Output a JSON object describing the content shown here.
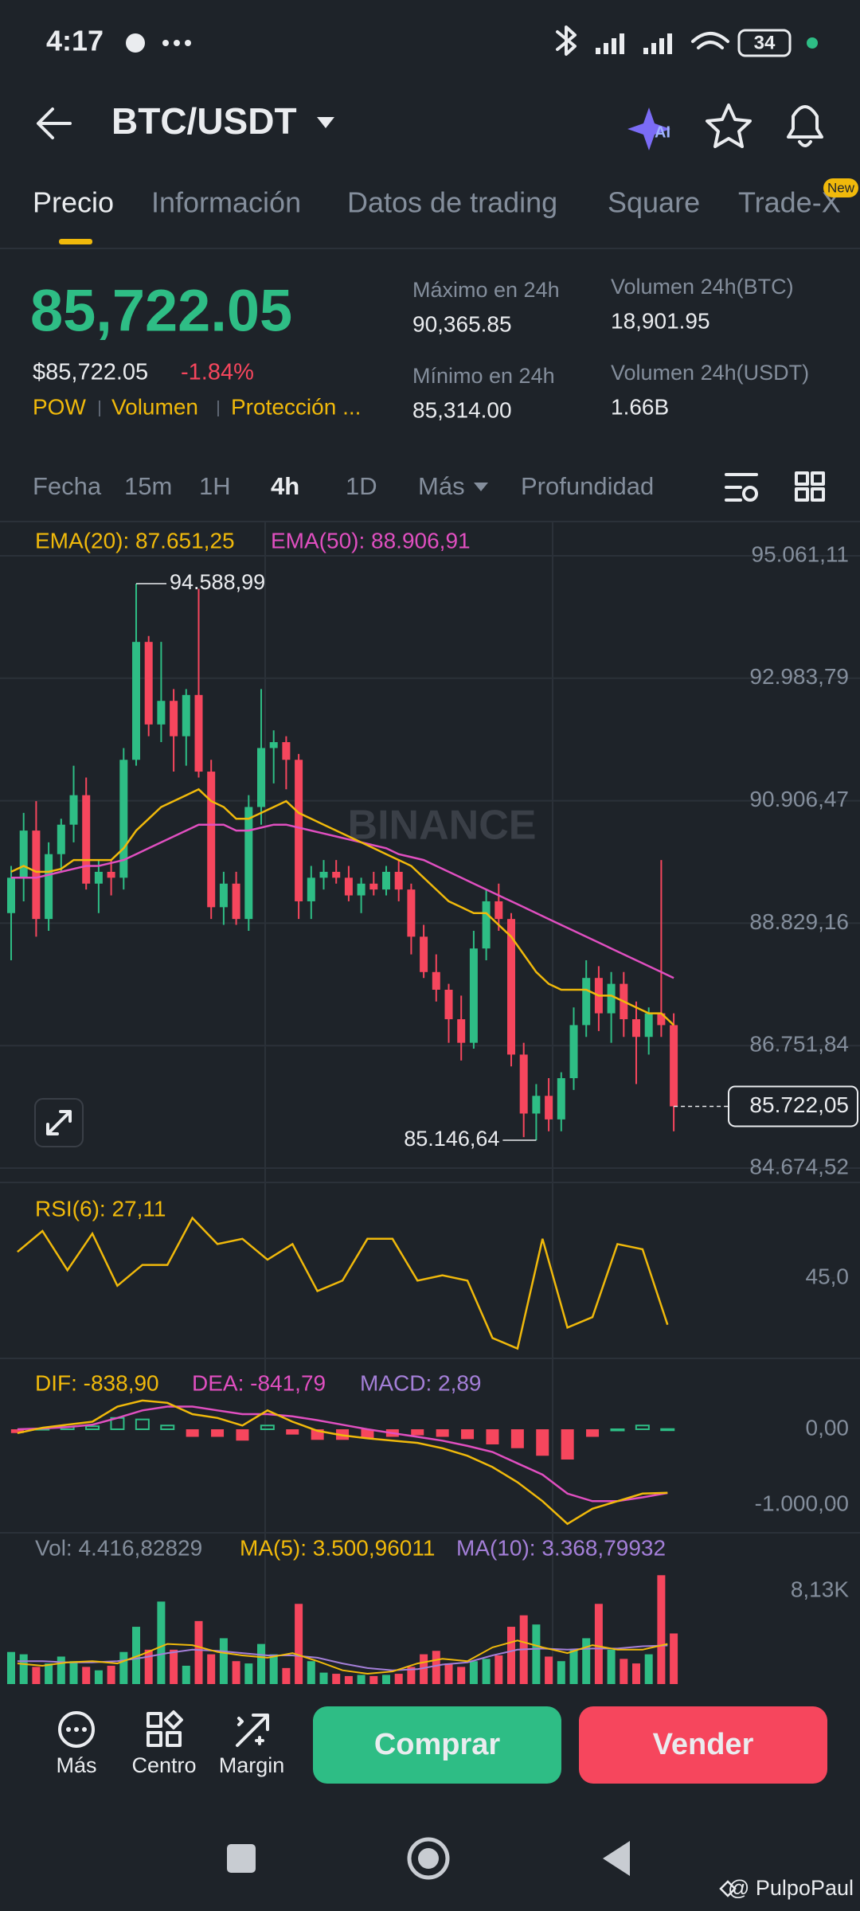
{
  "status_bar": {
    "time": "4:17",
    "battery": "34"
  },
  "header": {
    "pair": "BTC/USDT",
    "ai": "AI"
  },
  "tabs": [
    "Precio",
    "Información",
    "Datos de trading",
    "Square",
    "Trade-X"
  ],
  "tab_badge": "New",
  "price": {
    "last": "85,722.05",
    "usd": "$85,722.05",
    "change": "-1.84%"
  },
  "tags": [
    "POW",
    "Volumen",
    "Protección ..."
  ],
  "stats": [
    {
      "label": "Máximo en 24h",
      "value": "90,365.85"
    },
    {
      "label": "Mínimo en 24h",
      "value": "85,314.00"
    },
    {
      "label": "Volumen 24h(BTC)",
      "value": "18,901.95"
    },
    {
      "label": "Volumen 24h(USDT)",
      "value": "1.66B"
    }
  ],
  "intervals": [
    "Fecha",
    "15m",
    "1H",
    "4h",
    "1D",
    "Más",
    "Profundidad"
  ],
  "chart": {
    "ema20_label": "EMA(20): 87.651,25",
    "ema50_label": "EMA(50): 88.906,91",
    "watermark": "BINANCE",
    "price_ticks": [
      {
        "value": 95061.11,
        "label": "95.061,11"
      },
      {
        "value": 92983.79,
        "label": "92.983,79"
      },
      {
        "value": 90906.47,
        "label": "90.906,47"
      },
      {
        "value": 88829.16,
        "label": "88.829,16"
      },
      {
        "value": 86751.84,
        "label": "86.751,84"
      },
      {
        "value": 84674.52,
        "label": "84.674,52"
      }
    ],
    "high_label": "94.588,99",
    "low_label": "85.146,64",
    "current_label": "85.722,05",
    "candles": [
      [
        89000,
        89800,
        88200,
        89600
      ],
      [
        89600,
        90700,
        89200,
        90400
      ],
      [
        90400,
        90900,
        88600,
        88900
      ],
      [
        88900,
        90200,
        88700,
        90000
      ],
      [
        90000,
        90600,
        89700,
        90500
      ],
      [
        90500,
        91500,
        90200,
        91000
      ],
      [
        91000,
        91300,
        89400,
        89500
      ],
      [
        89500,
        89900,
        89000,
        89700
      ],
      [
        89700,
        89900,
        89300,
        89600
      ],
      [
        89600,
        91800,
        89400,
        91600
      ],
      [
        91600,
        94588.99,
        91500,
        93600
      ],
      [
        93600,
        93700,
        92000,
        92200
      ],
      [
        92200,
        93600,
        91900,
        92600
      ],
      [
        92600,
        92800,
        91400,
        92000
      ],
      [
        92000,
        92800,
        91500,
        92700
      ],
      [
        92700,
        94500,
        91300,
        91400
      ],
      [
        91400,
        91600,
        88900,
        89100
      ],
      [
        89100,
        89700,
        88800,
        89500
      ],
      [
        89500,
        89700,
        88800,
        88900
      ],
      [
        88900,
        91000,
        88700,
        90800
      ],
      [
        90800,
        92800,
        90500,
        91800
      ],
      [
        91800,
        92100,
        91200,
        91900
      ],
      [
        91900,
        92000,
        91100,
        91600
      ],
      [
        91600,
        91700,
        88900,
        89200
      ],
      [
        89200,
        89800,
        88900,
        89600
      ],
      [
        89600,
        89900,
        89400,
        89700
      ],
      [
        89700,
        89900,
        89500,
        89600
      ],
      [
        89600,
        89800,
        89200,
        89300
      ],
      [
        89300,
        89600,
        89000,
        89500
      ],
      [
        89500,
        89700,
        89300,
        89400
      ],
      [
        89400,
        89800,
        89300,
        89700
      ],
      [
        89700,
        89900,
        89200,
        89400
      ],
      [
        89400,
        89500,
        88300,
        88600
      ],
      [
        88600,
        88800,
        87900,
        88000
      ],
      [
        88000,
        88300,
        87500,
        87700
      ],
      [
        87700,
        87800,
        86800,
        87200
      ],
      [
        87200,
        87600,
        86500,
        86800
      ],
      [
        86800,
        88700,
        86700,
        88400
      ],
      [
        88400,
        89400,
        88200,
        89200
      ],
      [
        89200,
        89500,
        88700,
        88900
      ],
      [
        88900,
        89000,
        86400,
        86600
      ],
      [
        86600,
        86800,
        85200,
        85600
      ],
      [
        85600,
        86100,
        85146.64,
        85900
      ],
      [
        85900,
        86200,
        85300,
        85500
      ],
      [
        85500,
        86300,
        85300,
        86200
      ],
      [
        86200,
        87400,
        86000,
        87100
      ],
      [
        87100,
        88200,
        86900,
        87900
      ],
      [
        87900,
        88100,
        87000,
        87300
      ],
      [
        87300,
        88000,
        86800,
        87800
      ],
      [
        87800,
        88000,
        86900,
        87200
      ],
      [
        87200,
        87500,
        86100,
        86900
      ],
      [
        86900,
        87400,
        86600,
        87300
      ],
      [
        87300,
        89900,
        86900,
        87100
      ],
      [
        87100,
        87300,
        85300,
        85722.05
      ]
    ],
    "ema20": [
      89700,
      89800,
      89700,
      89700,
      89750,
      89900,
      89900,
      89900,
      89900,
      90100,
      90400,
      90600,
      90800,
      90900,
      91000,
      91100,
      90900,
      90800,
      90600,
      90600,
      90700,
      90800,
      90900,
      90700,
      90600,
      90500,
      90400,
      90300,
      90200,
      90100,
      90000,
      89900,
      89800,
      89600,
      89400,
      89200,
      89100,
      89000,
      89000,
      88800,
      88600,
      88300,
      88000,
      87800,
      87700,
      87700,
      87700,
      87600,
      87600,
      87500,
      87400,
      87300,
      87300,
      87100
    ],
    "ema50": [
      89600,
      89600,
      89600,
      89650,
      89700,
      89750,
      89800,
      89800,
      89850,
      89900,
      90000,
      90100,
      90200,
      90300,
      90400,
      90500,
      90500,
      90500,
      90400,
      90400,
      90450,
      90500,
      90500,
      90450,
      90400,
      90350,
      90300,
      90250,
      90200,
      90150,
      90100,
      90000,
      89950,
      89900,
      89800,
      89700,
      89600,
      89500,
      89400,
      89300,
      89200,
      89100,
      89000,
      88900,
      88800,
      88700,
      88600,
      88500,
      88400,
      88300,
      88200,
      88100,
      88000,
      87900
    ]
  },
  "rsi": {
    "label": "RSI(6): 27,11",
    "tick": {
      "value": 45,
      "label": "45,0"
    },
    "values": [
      55,
      63,
      48,
      62,
      42,
      50,
      50,
      68,
      58,
      60,
      52,
      58,
      40,
      44,
      60,
      60,
      44,
      46,
      44,
      22,
      18,
      60,
      26,
      30,
      58,
      56,
      27.11
    ]
  },
  "macd": {
    "dif_label": "DIF: -838,90",
    "dea_label": "DEA: -841,79",
    "macd_label": "MACD: 2,89",
    "ticks": [
      {
        "value": 0,
        "label": "0,00"
      },
      {
        "value": -1000,
        "label": "-1.000,00"
      }
    ],
    "dif": [
      -50,
      20,
      60,
      100,
      300,
      380,
      350,
      200,
      150,
      50,
      250,
      100,
      -20,
      -80,
      -120,
      -150,
      -180,
      -250,
      -350,
      -500,
      -700,
      -950,
      -1250,
      -1050,
      -950,
      -850,
      -838.9
    ],
    "dea": [
      0,
      10,
      30,
      60,
      150,
      250,
      300,
      300,
      250,
      200,
      200,
      170,
      120,
      60,
      0,
      -50,
      -100,
      -150,
      -220,
      -300,
      -450,
      -600,
      -850,
      -950,
      -950,
      -900,
      -841.79
    ],
    "hist": [
      -50,
      10,
      30,
      40,
      150,
      130,
      50,
      -100,
      -100,
      -150,
      50,
      -70,
      -140,
      -140,
      -120,
      -100,
      -80,
      -100,
      -130,
      -200,
      -250,
      -350,
      -400,
      -100,
      0,
      50,
      2.89
    ]
  },
  "volume": {
    "vol_label": "Vol: 4.416,82829",
    "ma5_label": "MA(5): 3.500,96011",
    "ma10_label": "MA(10): 3.368,79932",
    "tick": {
      "value": 8130,
      "label": "8,13K"
    },
    "values": [
      2800,
      2600,
      1500,
      1800,
      2400,
      2000,
      1500,
      1200,
      1600,
      2800,
      5000,
      3000,
      7200,
      3000,
      1600,
      5500,
      2600,
      4000,
      2000,
      1800,
      3500,
      2600,
      1400,
      7000,
      2000,
      1000,
      900,
      700,
      800,
      700,
      800,
      900,
      1500,
      2600,
      2900,
      1800,
      1500,
      2000,
      2200,
      2500,
      5000,
      6000,
      5200,
      2400,
      2000,
      3000,
      4000,
      7000,
      3000,
      2200,
      1800,
      2600,
      9500,
      4416.83
    ],
    "ma5": [
      1800,
      1600,
      1900,
      2000,
      1800,
      2600,
      3500,
      3400,
      2800,
      2500,
      2300,
      2700,
      2000,
      1200,
      900,
      1100,
      1800,
      2200,
      2000,
      3200,
      3800,
      3200,
      2700,
      3400,
      3000,
      3000,
      3500.96
    ],
    "ma10": [
      2000,
      2000,
      1900,
      1900,
      2000,
      2300,
      2700,
      3000,
      2900,
      2700,
      2500,
      2500,
      2300,
      1800,
      1400,
      1200,
      1300,
      1700,
      1900,
      2500,
      3000,
      3100,
      3000,
      3100,
      3100,
      3300,
      3368.8
    ]
  },
  "bottom_bar": {
    "items": [
      "Más",
      "Centro",
      "Margin"
    ],
    "buy": "Comprar",
    "sell": "Vender"
  },
  "watermark": "@ PulpoPaul"
}
